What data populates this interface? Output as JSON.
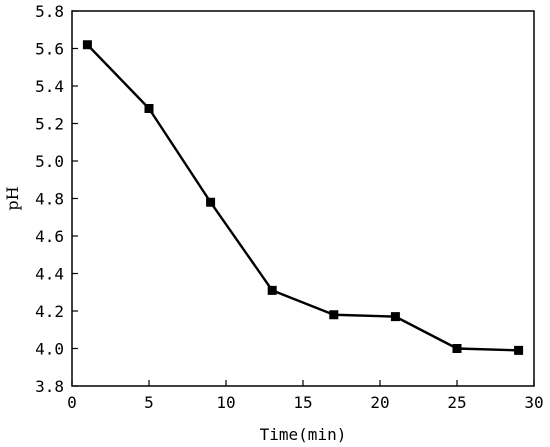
{
  "chart_data": {
    "type": "line",
    "title": "",
    "xlabel": "Time(min)",
    "ylabel": "pH",
    "xlim": [
      0,
      30
    ],
    "ylim": [
      3.8,
      5.8
    ],
    "x_ticks": [
      0,
      5,
      10,
      15,
      20,
      25,
      30
    ],
    "x_tick_labels": [
      "0",
      "5",
      "10",
      "15",
      "20",
      "25",
      "30"
    ],
    "y_ticks": [
      3.8,
      4.0,
      4.2,
      4.4,
      4.6,
      4.8,
      5.0,
      5.2,
      5.4,
      5.6,
      5.8
    ],
    "y_tick_labels": [
      "3.8",
      "4.0",
      "4.2",
      "4.4",
      "4.6",
      "4.8",
      "5.0",
      "5.2",
      "5.4",
      "5.6",
      "5.8"
    ],
    "grid": false,
    "legend": "none",
    "series": [
      {
        "marker": "square",
        "color": "#000000",
        "x": [
          1,
          5,
          9,
          13,
          17,
          21,
          25,
          29
        ],
        "y": [
          5.62,
          5.28,
          4.78,
          4.31,
          4.18,
          4.17,
          4.0,
          3.99
        ]
      }
    ]
  }
}
